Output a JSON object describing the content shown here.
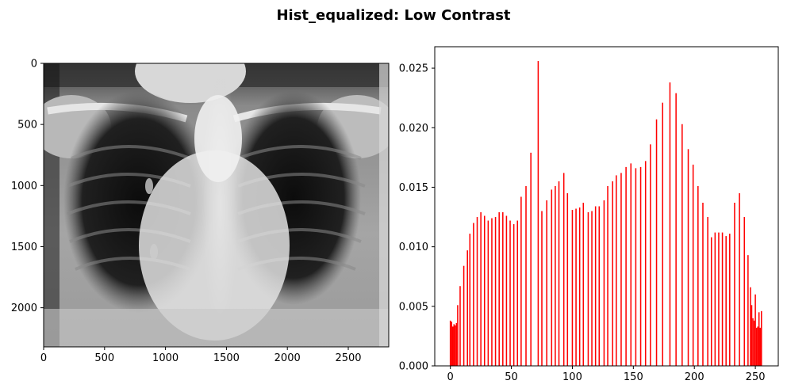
{
  "figure": {
    "title": "Hist_equalized: Low Contrast"
  },
  "chart_data": [
    {
      "type": "image",
      "name": "xray",
      "description_label": "",
      "xlim": [
        0,
        2832
      ],
      "ylim": [
        2320,
        0
      ],
      "xticks": [
        0,
        500,
        1000,
        1500,
        2000,
        2500
      ],
      "yticks": [
        0,
        500,
        1000,
        1500,
        2000
      ],
      "colormap": "gray"
    },
    {
      "type": "bar",
      "name": "histogram",
      "color": "#ff0000",
      "xlim": [
        -12.8,
        268.8
      ],
      "ylim": [
        0,
        0.0268
      ],
      "xticks": [
        0,
        50,
        100,
        150,
        200,
        250
      ],
      "yticks": [
        0.0,
        0.005,
        0.01,
        0.015,
        0.02,
        0.025
      ],
      "ytick_labels": [
        "0.000",
        "0.005",
        "0.010",
        "0.015",
        "0.020",
        "0.025"
      ],
      "bins": [
        [
          0,
          0.0038
        ],
        [
          1,
          0.0037
        ],
        [
          2,
          0.0033
        ],
        [
          3,
          0.0035
        ],
        [
          4,
          0.0034
        ],
        [
          5,
          0.0036
        ],
        [
          6,
          0.0051
        ],
        [
          8,
          0.0067
        ],
        [
          11,
          0.0084
        ],
        [
          14,
          0.0097
        ],
        [
          16,
          0.0111
        ],
        [
          19,
          0.012
        ],
        [
          22,
          0.0125
        ],
        [
          25,
          0.0129
        ],
        [
          28,
          0.0126
        ],
        [
          31,
          0.0122
        ],
        [
          34,
          0.0124
        ],
        [
          37,
          0.0125
        ],
        [
          40,
          0.0129
        ],
        [
          43,
          0.0129
        ],
        [
          46,
          0.0126
        ],
        [
          49,
          0.0122
        ],
        [
          52,
          0.0119
        ],
        [
          55,
          0.0122
        ],
        [
          58,
          0.0142
        ],
        [
          62,
          0.0151
        ],
        [
          66,
          0.0179
        ],
        [
          72,
          0.0256
        ],
        [
          75,
          0.013
        ],
        [
          79,
          0.0139
        ],
        [
          83,
          0.0148
        ],
        [
          86,
          0.0151
        ],
        [
          89,
          0.0155
        ],
        [
          93,
          0.0162
        ],
        [
          96,
          0.0145
        ],
        [
          100,
          0.0131
        ],
        [
          103,
          0.0132
        ],
        [
          106,
          0.0133
        ],
        [
          109,
          0.0137
        ],
        [
          113,
          0.0129
        ],
        [
          116,
          0.013
        ],
        [
          119,
          0.0134
        ],
        [
          122,
          0.0134
        ],
        [
          126,
          0.0139
        ],
        [
          129,
          0.0151
        ],
        [
          133,
          0.0155
        ],
        [
          136,
          0.016
        ],
        [
          140,
          0.0162
        ],
        [
          144,
          0.0167
        ],
        [
          148,
          0.017
        ],
        [
          152,
          0.0166
        ],
        [
          156,
          0.0167
        ],
        [
          160,
          0.0172
        ],
        [
          164,
          0.0186
        ],
        [
          169,
          0.0207
        ],
        [
          174,
          0.0221
        ],
        [
          180,
          0.0238
        ],
        [
          185,
          0.0229
        ],
        [
          190,
          0.0203
        ],
        [
          195,
          0.0182
        ],
        [
          199,
          0.0169
        ],
        [
          203,
          0.0151
        ],
        [
          207,
          0.0137
        ],
        [
          211,
          0.0125
        ],
        [
          214,
          0.0108
        ],
        [
          217,
          0.0112
        ],
        [
          220,
          0.0112
        ],
        [
          223,
          0.0112
        ],
        [
          226,
          0.0109
        ],
        [
          229,
          0.0111
        ],
        [
          233,
          0.0137
        ],
        [
          237,
          0.0145
        ],
        [
          241,
          0.0125
        ],
        [
          244,
          0.0093
        ],
        [
          246,
          0.0066
        ],
        [
          247,
          0.0051
        ],
        [
          248,
          0.004
        ],
        [
          249,
          0.0038
        ],
        [
          250,
          0.006
        ],
        [
          251,
          0.0032
        ],
        [
          252,
          0.0033
        ],
        [
          253,
          0.0045
        ],
        [
          254,
          0.0032
        ],
        [
          255,
          0.0046
        ]
      ]
    }
  ]
}
